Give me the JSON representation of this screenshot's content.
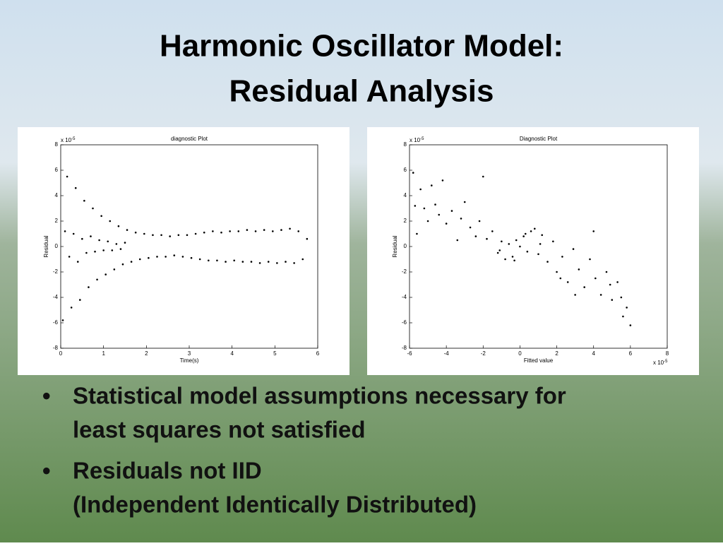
{
  "title": [
    "Harmonic Oscillator Model:",
    "Residual Analysis"
  ],
  "bullets": [
    [
      "Statistical model assumptions necessary for",
      "least squares not satisfied"
    ],
    [
      "Residuals not IID",
      "(Independent Identically Distributed)"
    ]
  ],
  "chart_data": [
    {
      "type": "scatter",
      "title": "diagnostic Plot",
      "xlabel": "Time(s)",
      "ylabel": "Residual",
      "y_scale": {
        "base": "x 10",
        "exponent": "-5"
      },
      "color": "#000000",
      "xlim": [
        0,
        6
      ],
      "ylim": [
        -8,
        8
      ],
      "xticks": [
        0,
        1,
        2,
        3,
        4,
        5,
        6
      ],
      "yticks": [
        -8,
        -6,
        -4,
        -2,
        0,
        2,
        4,
        6,
        8
      ],
      "x": [
        0.05,
        0.1,
        0.15,
        0.2,
        0.25,
        0.3,
        0.35,
        0.4,
        0.45,
        0.5,
        0.55,
        0.6,
        0.65,
        0.7,
        0.75,
        0.8,
        0.85,
        0.9,
        0.95,
        1.0,
        1.05,
        1.1,
        1.15,
        1.2,
        1.25,
        1.3,
        1.35,
        1.4,
        1.45,
        1.5,
        1.55,
        1.65,
        1.75,
        1.85,
        1.95,
        2.05,
        2.15,
        2.25,
        2.35,
        2.45,
        2.55,
        2.65,
        2.75,
        2.85,
        2.95,
        3.05,
        3.15,
        3.25,
        3.35,
        3.45,
        3.55,
        3.65,
        3.75,
        3.85,
        3.95,
        4.05,
        4.15,
        4.25,
        4.35,
        4.45,
        4.55,
        4.65,
        4.75,
        4.85,
        4.95,
        5.05,
        5.15,
        5.25,
        5.35,
        5.45,
        5.55,
        5.65,
        5.75
      ],
      "values": [
        -5.8,
        1.2,
        5.5,
        -0.8,
        -4.8,
        1.0,
        4.6,
        -1.2,
        -4.2,
        0.6,
        3.6,
        -0.5,
        -3.2,
        0.8,
        3.0,
        -0.4,
        -2.6,
        0.5,
        2.4,
        -0.3,
        -2.2,
        0.4,
        2.0,
        -0.3,
        -1.8,
        0.2,
        1.6,
        -0.2,
        -1.4,
        0.3,
        1.3,
        -1.2,
        1.1,
        -1.0,
        1.0,
        -0.9,
        0.9,
        -0.8,
        0.9,
        -0.8,
        0.8,
        -0.7,
        0.9,
        -0.8,
        0.9,
        -0.9,
        1.0,
        -1.0,
        1.1,
        -1.1,
        1.2,
        -1.1,
        1.1,
        -1.2,
        1.2,
        -1.1,
        1.2,
        -1.2,
        1.3,
        -1.2,
        1.2,
        -1.3,
        1.3,
        -1.2,
        1.2,
        -1.3,
        1.3,
        -1.2,
        1.4,
        -1.3,
        1.2,
        -1.0,
        0.6
      ]
    },
    {
      "type": "scatter",
      "title": "Diagnostic Plot",
      "xlabel": "Fitted value",
      "ylabel": "Residual",
      "y_scale": {
        "base": "x 10",
        "exponent": "-5"
      },
      "x_scale": {
        "base": "x 10",
        "exponent": "-5"
      },
      "color": "#000000",
      "xlim": [
        -6,
        8
      ],
      "ylim": [
        -8,
        8
      ],
      "xticks": [
        -6,
        -4,
        -2,
        0,
        2,
        4,
        6,
        8
      ],
      "yticks": [
        -8,
        -6,
        -4,
        -2,
        0,
        2,
        4,
        6,
        8
      ],
      "x": [
        -5.8,
        -5.7,
        -5.6,
        -5.4,
        -5.2,
        -5.0,
        -4.8,
        -4.6,
        -4.4,
        -4.2,
        -4.0,
        -3.7,
        -3.4,
        -3.2,
        -3.0,
        -2.7,
        -2.4,
        -2.2,
        -2.0,
        -1.8,
        -1.5,
        -1.2,
        -1.0,
        -0.8,
        -0.6,
        -0.4,
        -0.2,
        0.0,
        0.2,
        0.4,
        0.6,
        0.8,
        1.0,
        1.2,
        1.5,
        1.8,
        2.0,
        2.3,
        2.6,
        2.9,
        3.2,
        3.5,
        3.8,
        4.1,
        4.4,
        4.7,
        5.0,
        5.3,
        5.6,
        5.8,
        6.0,
        0.3,
        -0.3,
        1.1,
        -1.1,
        2.2,
        3.0,
        4.0,
        4.9,
        5.5
      ],
      "values": [
        5.8,
        3.2,
        1.0,
        4.5,
        3.0,
        2.0,
        4.8,
        3.3,
        2.5,
        5.2,
        1.8,
        2.8,
        0.5,
        2.2,
        3.5,
        1.5,
        0.8,
        2.0,
        5.5,
        0.6,
        1.2,
        -0.5,
        0.4,
        -1.0,
        0.2,
        -0.8,
        0.5,
        0.0,
        0.8,
        -0.4,
        1.2,
        1.4,
        -0.6,
        0.9,
        -1.2,
        0.4,
        -2.0,
        -0.8,
        -2.8,
        -0.2,
        -1.8,
        -3.2,
        -1.0,
        -2.5,
        -3.8,
        -2.0,
        -4.2,
        -2.8,
        -5.5,
        -4.8,
        -6.2,
        1.0,
        -1.1,
        0.2,
        -0.3,
        -2.5,
        -3.8,
        1.2,
        -3.0,
        -4.0
      ]
    }
  ]
}
